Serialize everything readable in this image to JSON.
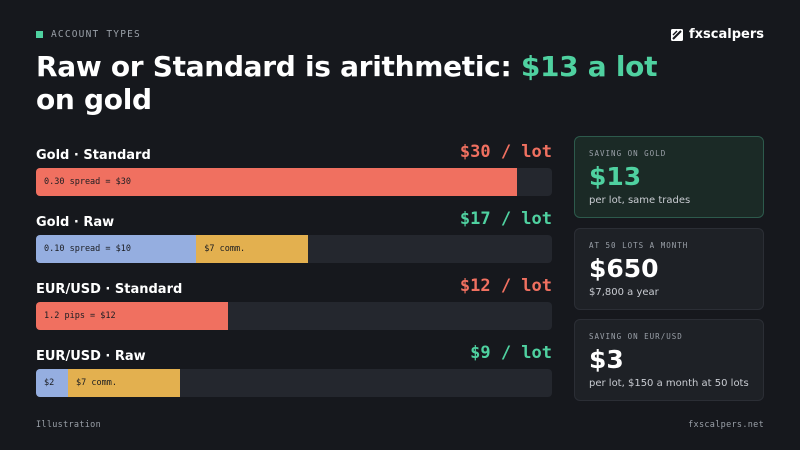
{
  "eyebrow": "ACCOUNT TYPES",
  "brand": {
    "name": "fxscalpers"
  },
  "headline": {
    "pre": "Raw or Standard is arithmetic: ",
    "accent": "$13 a lot",
    "post": " on gold"
  },
  "colors": {
    "background": "#16181d",
    "accent_green": "#4fd1a0",
    "cost_red": "#f07060",
    "spread_blue": "#95aee0",
    "commission_gold": "#e3b04f",
    "track": "#24272e"
  },
  "chart_data": {
    "type": "bar",
    "orientation": "horizontal-stacked",
    "xlim": [
      0,
      32.2
    ],
    "rows": [
      {
        "label": "Gold · Standard",
        "total_label": "$30 / lot",
        "total_color": "#f07060",
        "segments": [
          {
            "value": 30,
            "text": "0.30 spread = $30",
            "color": "#f07060"
          }
        ]
      },
      {
        "label": "Gold · Raw",
        "total_label": "$17 / lot",
        "total_color": "#4fd1a0",
        "segments": [
          {
            "value": 10,
            "text": "0.10 spread = $10",
            "color": "#95aee0"
          },
          {
            "value": 7,
            "text": "$7 comm.",
            "color": "#e3b04f"
          }
        ]
      },
      {
        "label": "EUR/USD · Standard",
        "total_label": "$12 / lot",
        "total_color": "#f07060",
        "segments": [
          {
            "value": 12,
            "text": "1.2 pips = $12",
            "color": "#f07060"
          }
        ]
      },
      {
        "label": "EUR/USD · Raw",
        "total_label": "$9 / lot",
        "total_color": "#4fd1a0",
        "segments": [
          {
            "value": 2,
            "text": "$2",
            "color": "#95aee0"
          },
          {
            "value": 7,
            "text": "$7 comm.",
            "color": "#e3b04f"
          }
        ]
      }
    ]
  },
  "cards": [
    {
      "eyebrow": "SAVING ON GOLD",
      "value": "$13",
      "sub": "per lot, same trades",
      "highlight": true,
      "value_color": "#4fd1a0"
    },
    {
      "eyebrow": "AT 50 LOTS A MONTH",
      "value": "$650",
      "sub": "$7,800 a year",
      "highlight": false,
      "value_color": "#ffffff"
    },
    {
      "eyebrow": "SAVING ON EUR/USD",
      "value": "$3",
      "sub": "per lot, $150 a month at 50 lots",
      "highlight": false,
      "value_color": "#ffffff"
    }
  ],
  "footer": {
    "left": "Illustration",
    "right": "fxscalpers.net"
  }
}
